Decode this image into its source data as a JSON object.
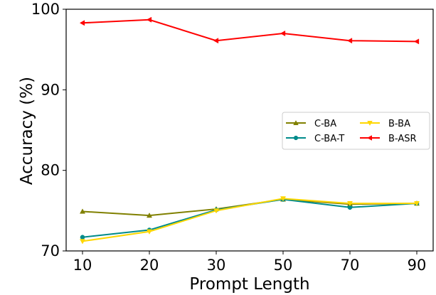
{
  "chart_data": {
    "type": "line",
    "categories": [
      "10",
      "20",
      "30",
      "50",
      "70",
      "90"
    ],
    "xlabel": "Prompt Length",
    "ylabel": "Accuracy (%)",
    "ylim": [
      70,
      100
    ],
    "yticks": [
      "70",
      "80",
      "90",
      "100"
    ],
    "grid": false,
    "legend_position": "center-right",
    "series": [
      {
        "name": "C-BA",
        "color": "#808000",
        "marker": "triangle-up",
        "values": [
          74.9,
          74.4,
          75.2,
          76.4,
          75.8,
          75.9
        ]
      },
      {
        "name": "C-BA-T",
        "color": "#008B8B",
        "marker": "circle",
        "values": [
          71.7,
          72.6,
          75.1,
          76.4,
          75.4,
          75.9
        ]
      },
      {
        "name": "B-BA",
        "color": "#FFD700",
        "marker": "triangle-down",
        "values": [
          71.2,
          72.4,
          75.0,
          76.5,
          75.9,
          75.9
        ]
      },
      {
        "name": "B-ASR",
        "color": "#FF0000",
        "marker": "triangle-left",
        "values": [
          98.3,
          98.7,
          96.1,
          97.0,
          96.1,
          96.0
        ]
      }
    ]
  }
}
